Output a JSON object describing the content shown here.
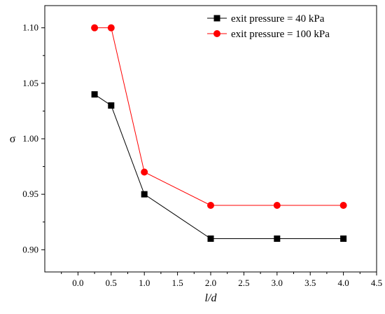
{
  "chart_data": {
    "type": "line",
    "title": "",
    "xlabel": "l/d",
    "ylabel": "σ",
    "xlim": [
      -0.5,
      4.5
    ],
    "ylim": [
      0.88,
      1.12
    ],
    "xticks": [
      0.0,
      0.5,
      1.0,
      1.5,
      2.0,
      2.5,
      3.0,
      3.5,
      4.0,
      4.5
    ],
    "xtick_labels": [
      "0.0",
      "0.5",
      "1.0",
      "1.5",
      "2.0",
      "2.5",
      "3.0",
      "3.5",
      "4.0",
      "4.5"
    ],
    "yticks": [
      0.9,
      0.95,
      1.0,
      1.05,
      1.1
    ],
    "ytick_labels": [
      "0.90",
      "0.95",
      "1.00",
      "1.05",
      "1.10"
    ],
    "x": [
      0.25,
      0.5,
      1.0,
      2.0,
      3.0,
      4.0
    ],
    "series": [
      {
        "name": "exit pressure = 40 kPa",
        "marker": "square",
        "color": "#000000",
        "line_color": "#000000",
        "values": [
          1.04,
          1.03,
          0.95,
          0.91,
          0.91,
          0.91
        ]
      },
      {
        "name": "exit pressure = 100 kPa",
        "marker": "circle",
        "color": "#ff0000",
        "line_color": "#ff0000",
        "values": [
          1.1,
          1.1,
          0.97,
          0.94,
          0.94,
          0.94
        ]
      }
    ],
    "grid": false,
    "legend_position": "top-right"
  }
}
